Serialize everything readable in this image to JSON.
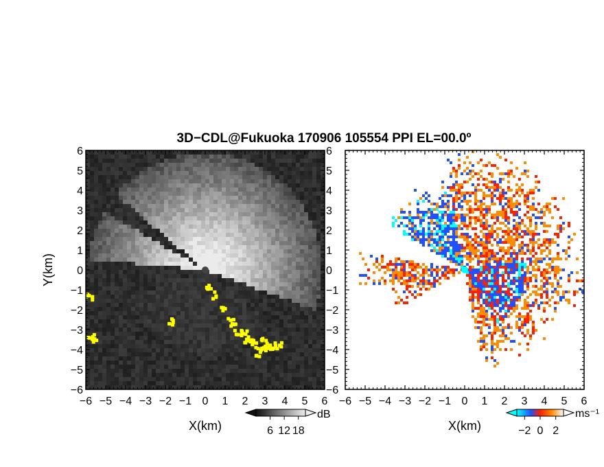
{
  "chart_data": {
    "title": "3D−CDL@Fukuoka 170906 105554 PPI EL=00.0º",
    "panels": [
      {
        "type": "heatmap",
        "quantity": "Signal-to-noise ratio (PPI)",
        "xlabel": "X(km)",
        "ylabel": "Y(km)",
        "xlim": [
          -6,
          6
        ],
        "ylim": [
          -6,
          6
        ],
        "x_ticks": [
          "−6",
          "−5",
          "−4",
          "−3",
          "−2",
          "−1",
          "0",
          "1",
          "2",
          "3",
          "4",
          "5",
          "6"
        ],
        "y_ticks": [
          "−6",
          "−5",
          "−4",
          "−3",
          "−2",
          "−1",
          "0",
          "1",
          "2",
          "3",
          "4",
          "5",
          "6"
        ],
        "colormap": "grayscale",
        "highlight_color": "#ffff00",
        "colorbar": {
          "unit": "dB",
          "tick_labels": [
            "6",
            "12",
            "18"
          ],
          "tick_values": [
            6,
            12,
            18
          ],
          "range": [
            0,
            21
          ]
        }
      },
      {
        "type": "heatmap",
        "quantity": "Doppler velocity (PPI)",
        "xlabel": "X(km)",
        "ylabel": "",
        "xlim": [
          -6,
          6
        ],
        "ylim": [
          -6,
          6
        ],
        "x_ticks": [
          "−6",
          "−5",
          "−4",
          "−3",
          "−2",
          "−1",
          "0",
          "1",
          "2",
          "3",
          "4",
          "5",
          "6"
        ],
        "y_ticks": [
          "−6",
          "−5",
          "−4",
          "−3",
          "−2",
          "−1",
          "0",
          "1",
          "2",
          "3",
          "4",
          "5",
          "6"
        ],
        "colormap": "cyan-blue-red-orange-white",
        "colors": [
          "#00ffff",
          "#2050ff",
          "#ff2000",
          "#ff8c00",
          "#ffffff"
        ],
        "colorbar": {
          "unit": "ms⁻¹",
          "tick_labels": [
            "−2",
            "0",
            "2"
          ],
          "tick_values": [
            -2,
            0,
            2
          ],
          "range": [
            -3,
            3
          ]
        }
      }
    ]
  }
}
